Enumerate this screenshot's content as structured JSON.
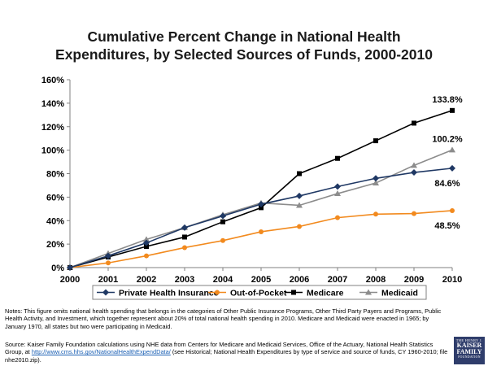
{
  "title_line1": "Cumulative Percent Change in National Health",
  "title_line2": "Expenditures, by Selected Sources of Funds, 2000-2010",
  "notes_text": "Notes: This figure omits national health spending that belongs in the categories of Other Public Insurance Programs, Other Third Party Payers and Programs, Public Health Activity, and Investment, which together represent about 20% of total national health spending in 2010. Medicare and Medicaid were enacted in 1965; by January 1970, all states but two were participating in Medicaid.",
  "source_prefix": "Source: Kaiser Family Foundation calculations using NHE data from Centers for Medicare and Medicaid Services, Office of the Actuary, National Health Statistics Group, at ",
  "source_url": "http://www.cms.hhs.gov/NationalHealthExpendData/",
  "source_suffix": " (see Historical; National Health Expenditures by type of service and source of funds, CY 1960-2010; file nhe2010.zip).",
  "logo": {
    "line1": "THE HENRY J.",
    "line2a": "KAISER",
    "line2b": "FAMILY",
    "line3": "FOUNDATION"
  },
  "chart_data": {
    "type": "line",
    "title": "Cumulative Percent Change in National Health Expenditures, by Selected Sources of Funds, 2000-2010",
    "categories": [
      "2000",
      "2001",
      "2002",
      "2003",
      "2004",
      "2005",
      "2006",
      "2007",
      "2008",
      "2009",
      "2010"
    ],
    "y_ticks": [
      "0%",
      "20%",
      "40%",
      "60%",
      "80%",
      "100%",
      "120%",
      "140%",
      "160%"
    ],
    "ylim": [
      0,
      160
    ],
    "xlabel": "",
    "ylabel": "",
    "legend_position": "bottom",
    "series": [
      {
        "name": "Private Health Insurance",
        "color": "#1f3864",
        "marker": "diamond",
        "values": [
          0,
          10,
          21,
          34,
          44,
          54,
          61,
          69,
          76,
          81,
          84.6
        ],
        "end_label": "84.6%"
      },
      {
        "name": "Out-of-Pocket",
        "color": "#f28a1e",
        "marker": "circle",
        "values": [
          0,
          4,
          10,
          17,
          23,
          30.5,
          35,
          42.5,
          45.5,
          46,
          48.5
        ],
        "end_label": "48.5%"
      },
      {
        "name": "Medicare",
        "color": "#000000",
        "marker": "square",
        "values": [
          0,
          9,
          18,
          26,
          39,
          51,
          80,
          93,
          108,
          123,
          133.8
        ],
        "end_label": "133.8%"
      },
      {
        "name": "Medicaid",
        "color": "#8c8c8c",
        "marker": "triangle",
        "values": [
          0,
          12,
          24,
          34,
          45,
          55,
          53,
          63,
          72,
          87,
          100.2
        ],
        "end_label": "100.2%"
      }
    ]
  }
}
